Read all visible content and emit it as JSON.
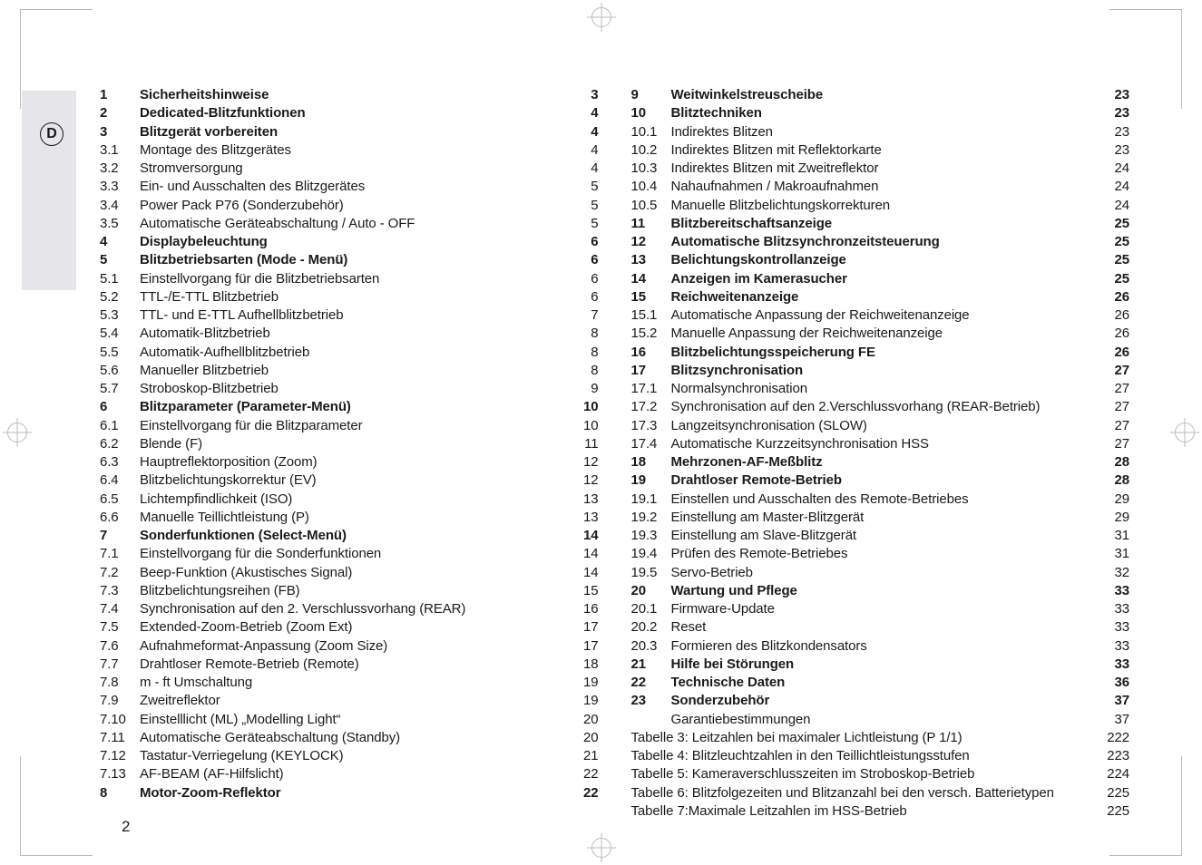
{
  "pageNumber": "2",
  "badge": "D",
  "columns": {
    "left": [
      {
        "n": "1",
        "t": "Sicherheitshinweise",
        "p": "3",
        "b": true
      },
      {
        "n": "2",
        "t": "Dedicated-Blitzfunktionen",
        "p": "4",
        "b": true
      },
      {
        "n": "3",
        "t": "Blitzgerät vorbereiten",
        "p": "4",
        "b": true
      },
      {
        "n": "3.1",
        "t": "Montage des Blitzgerätes",
        "p": "4"
      },
      {
        "n": "3.2",
        "t": "Stromversorgung",
        "p": "4"
      },
      {
        "n": "3.3",
        "t": "Ein- und Ausschalten des Blitzgerätes",
        "p": "5"
      },
      {
        "n": "3.4",
        "t": "Power Pack P76 (Sonderzubehör)",
        "p": "5"
      },
      {
        "n": "3.5",
        "t": "Automatische Geräteabschaltung / Auto - OFF",
        "p": "5"
      },
      {
        "n": "4",
        "t": "Displaybeleuchtung",
        "p": "6",
        "b": true
      },
      {
        "n": "5",
        "t": "Blitzbetriebsarten (Mode - Menü)",
        "p": "6",
        "b": true
      },
      {
        "n": "5.1",
        "t": "Einstellvorgang für die Blitzbetriebsarten",
        "p": "6"
      },
      {
        "n": "5.2",
        "t": "TTL-/E-TTL Blitzbetrieb",
        "p": "6"
      },
      {
        "n": "5.3",
        "t": "TTL- und E-TTL Aufhellblitzbetrieb",
        "p": "7"
      },
      {
        "n": "5.4",
        "t": "Automatik-Blitzbetrieb",
        "p": "8"
      },
      {
        "n": "5.5",
        "t": "Automatik-Aufhellblitzbetrieb",
        "p": "8"
      },
      {
        "n": "5.6",
        "t": "Manueller Blitzbetrieb",
        "p": "8"
      },
      {
        "n": "5.7",
        "t": "Stroboskop-Blitzbetrieb",
        "p": "9"
      },
      {
        "n": "6",
        "t": "Blitzparameter (Parameter-Menü)",
        "p": "10",
        "b": true
      },
      {
        "n": "6.1",
        "t": "Einstellvorgang für die Blitzparameter",
        "p": "10"
      },
      {
        "n": "6.2",
        "t": "Blende (F)",
        "p": "11"
      },
      {
        "n": "6.3",
        "t": "Hauptreflektorposition (Zoom)",
        "p": "12"
      },
      {
        "n": "6.4",
        "t": "Blitzbelichtungskorrektur (EV)",
        "p": "12"
      },
      {
        "n": "6.5",
        "t": "Lichtempfindlichkeit (ISO)",
        "p": "13"
      },
      {
        "n": "6.6",
        "t": "Manuelle Teillichtleistung (P)",
        "p": "13"
      },
      {
        "n": "7",
        "t": "Sonderfunktionen (Select-Menü)",
        "p": "14",
        "b": true
      },
      {
        "n": "7.1",
        "t": "Einstellvorgang für die Sonderfunktionen",
        "p": "14"
      },
      {
        "n": "7.2",
        "t": "Beep-Funktion (Akustisches Signal)",
        "p": "14"
      },
      {
        "n": "7.3",
        "t": "Blitzbelichtungsreihen (FB)",
        "p": "15"
      },
      {
        "n": "7.4",
        "t": "Synchronisation auf den 2. Verschlussvorhang (REAR)",
        "p": "16"
      },
      {
        "n": "7.5",
        "t": "Extended-Zoom-Betrieb (Zoom Ext)",
        "p": "17"
      },
      {
        "n": "7.6",
        "t": "Aufnahmeformat-Anpassung (Zoom Size)",
        "p": "17"
      },
      {
        "n": "7.7",
        "t": "Drahtloser Remote-Betrieb (Remote)",
        "p": "18"
      },
      {
        "n": "7.8",
        "t": "m - ft Umschaltung",
        "p": "19"
      },
      {
        "n": "7.9",
        "t": "Zweitreflektor",
        "p": "19"
      },
      {
        "n": "7.10",
        "t": "Einstelllicht (ML) „Modelling Light“",
        "p": "20"
      },
      {
        "n": "7.11",
        "t": "Automatische Geräteabschaltung (Standby)",
        "p": "20"
      },
      {
        "n": "7.12",
        "t": "Tastatur-Verriegelung (KEYLOCK)",
        "p": "21"
      },
      {
        "n": "7.13",
        "t": "AF-BEAM (AF-Hilfslicht)",
        "p": "22"
      },
      {
        "n": "8",
        "t": "Motor-Zoom-Reflektor",
        "p": "22",
        "b": true
      }
    ],
    "right": [
      {
        "n": "9",
        "t": "Weitwinkelstreuscheibe",
        "p": "23",
        "b": true
      },
      {
        "n": "10",
        "t": "Blitztechniken",
        "p": "23",
        "b": true
      },
      {
        "n": "10.1",
        "t": "Indirektes Blitzen",
        "p": "23"
      },
      {
        "n": "10.2",
        "t": "Indirektes Blitzen mit Reflektorkarte",
        "p": "23"
      },
      {
        "n": "10.3",
        "t": "Indirektes Blitzen mit Zweitreflektor",
        "p": "24"
      },
      {
        "n": "10.4",
        "t": "Nahaufnahmen / Makroaufnahmen",
        "p": "24"
      },
      {
        "n": "10.5",
        "t": "Manuelle Blitzbelichtungskorrekturen",
        "p": "24"
      },
      {
        "n": "11",
        "t": "Blitzbereitschaftsanzeige",
        "p": "25",
        "b": true
      },
      {
        "n": "12",
        "t": "Automatische Blitzsynchronzeitsteuerung",
        "p": "25",
        "b": true
      },
      {
        "n": "13",
        "t": "Belichtungskontrollanzeige",
        "p": "25",
        "b": true
      },
      {
        "n": "14",
        "t": "Anzeigen im Kamerasucher",
        "p": "25",
        "b": true
      },
      {
        "n": "15",
        "t": "Reichweitenanzeige",
        "p": "26",
        "b": true
      },
      {
        "n": "15.1",
        "t": "Automatische Anpassung der Reichweitenanzeige",
        "p": "26"
      },
      {
        "n": "15.2",
        "t": "Manuelle Anpassung der Reichweitenanzeige",
        "p": "26"
      },
      {
        "n": "16",
        "t": "Blitzbelichtungsspeicherung FE",
        "p": "26",
        "b": true
      },
      {
        "n": "17",
        "t": "Blitzsynchronisation",
        "p": "27",
        "b": true
      },
      {
        "n": "17.1",
        "t": "Normalsynchronisation",
        "p": "27"
      },
      {
        "n": "17.2",
        "t": "Synchronisation auf den 2.Verschlussvorhang (REAR-Betrieb)",
        "p": "27"
      },
      {
        "n": "17.3",
        "t": "Langzeitsynchronisation (SLOW)",
        "p": "27"
      },
      {
        "n": "17.4",
        "t": "Automatische Kurzzeitsynchronisation HSS",
        "p": "27"
      },
      {
        "n": "18",
        "t": "Mehrzonen-AF-Meßblitz",
        "p": "28",
        "b": true
      },
      {
        "n": "19",
        "t": "Drahtloser Remote-Betrieb",
        "p": "28",
        "b": true
      },
      {
        "n": "19.1",
        "t": "Einstellen und Ausschalten des Remote-Betriebes",
        "p": "29"
      },
      {
        "n": "19.2",
        "t": "Einstellung am Master-Blitzgerät",
        "p": "29"
      },
      {
        "n": "19.3",
        "t": "Einstellung am Slave-Blitzgerät",
        "p": "31"
      },
      {
        "n": "19.4",
        "t": "Prüfen des Remote-Betriebes",
        "p": "31"
      },
      {
        "n": "19.5",
        "t": "Servo-Betrieb",
        "p": "32"
      },
      {
        "n": "20",
        "t": "Wartung und Pflege",
        "p": "33",
        "b": true
      },
      {
        "n": "20.1",
        "t": "Firmware-Update",
        "p": "33"
      },
      {
        "n": "20.2",
        "t": "Reset",
        "p": "33"
      },
      {
        "n": "20.3",
        "t": "Formieren des Blitzkondensators",
        "p": "33"
      },
      {
        "n": "21",
        "t": "Hilfe bei Störungen",
        "p": "33",
        "b": true
      },
      {
        "n": "22",
        "t": "Technische Daten",
        "p": "36",
        "b": true
      },
      {
        "n": "23",
        "t": "Sonderzubehör",
        "p": "37",
        "b": true
      },
      {
        "n": "",
        "t": "Garantiebestimmungen",
        "p": "37"
      },
      {
        "n": "",
        "t": "Tabelle 3: Leitzahlen bei maximaler Lichtleistung (P 1/1)",
        "p": "222",
        "full": true
      },
      {
        "n": "",
        "t": "Tabelle 4: Blitzleuchtzahlen in den Teillichtleistungsstufen",
        "p": "223",
        "full": true
      },
      {
        "n": "",
        "t": "Tabelle 5: Kameraverschlusszeiten im Stroboskop-Betrieb",
        "p": "224",
        "full": true
      },
      {
        "n": "",
        "t": "Tabelle 6: Blitzfolgezeiten und Blitzanzahl bei den versch. Batterietypen",
        "p": "225",
        "full": true
      },
      {
        "n": "",
        "t": "Tabelle 7:Maximale Leitzahlen im HSS-Betrieb",
        "p": "225",
        "full": true
      }
    ]
  }
}
